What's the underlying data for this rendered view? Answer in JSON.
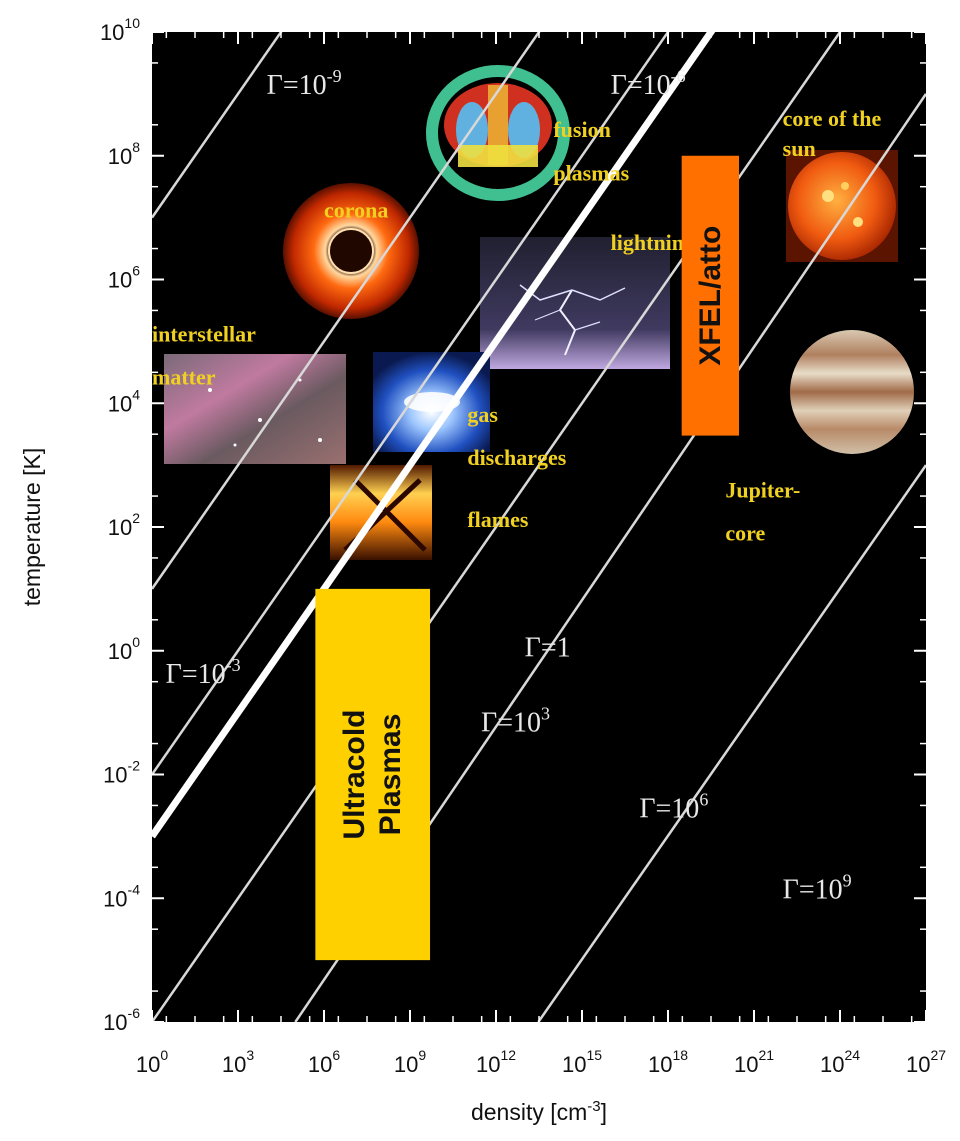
{
  "chart_data": {
    "type": "line",
    "title": "",
    "xlabel": "density [cm",
    "xlabel_sup": "-3",
    "xlabel_close": "]",
    "ylabel": "temperature [K]",
    "x_scale": "log",
    "y_scale": "log",
    "xlim": [
      1,
      1e+27
    ],
    "ylim": [
      1e-06,
      10000000000.0
    ],
    "x_ticks": [
      {
        "base": "10",
        "exp": "0",
        "value": 1
      },
      {
        "base": "10",
        "exp": "3",
        "value": 1000.0
      },
      {
        "base": "10",
        "exp": "6",
        "value": 1000000.0
      },
      {
        "base": "10",
        "exp": "9",
        "value": 1000000000.0
      },
      {
        "base": "10",
        "exp": "12",
        "value": 1000000000000.0
      },
      {
        "base": "10",
        "exp": "15",
        "value": 1000000000000000.0
      },
      {
        "base": "10",
        "exp": "18",
        "value": 1e+18
      },
      {
        "base": "10",
        "exp": "21",
        "value": 1e+21
      },
      {
        "base": "10",
        "exp": "24",
        "value": 1e+24
      },
      {
        "base": "10",
        "exp": "27",
        "value": 1e+27
      }
    ],
    "y_ticks": [
      {
        "base": "10",
        "exp": "-6",
        "value": 1e-06
      },
      {
        "base": "10",
        "exp": "-4",
        "value": 0.0001
      },
      {
        "base": "10",
        "exp": "-2",
        "value": 0.01
      },
      {
        "base": "10",
        "exp": "0",
        "value": 1
      },
      {
        "base": "10",
        "exp": "2",
        "value": 100.0
      },
      {
        "base": "10",
        "exp": "4",
        "value": 10000.0
      },
      {
        "base": "10",
        "exp": "6",
        "value": 1000000.0
      },
      {
        "base": "10",
        "exp": "8",
        "value": 100000000.0
      },
      {
        "base": "10",
        "exp": "10",
        "value": 10000000000.0
      }
    ],
    "grid": false,
    "background": "#000000",
    "series": [
      {
        "label_base": "Γ=10",
        "label_exp": "-9",
        "emphasis": false,
        "x": [
          1,
          1e+27
        ],
        "y": [
          10000000.0,
          1e+25
        ],
        "label_at": [
          10000.0,
          1000000000.0
        ]
      },
      {
        "label_base": "Γ=10",
        "label_exp": "-6",
        "emphasis": false,
        "x": [
          1,
          1e+27
        ],
        "y": [
          10.0,
          1e+19
        ],
        "label_at": [
          1e+16,
          1000000000.0
        ]
      },
      {
        "label_base": "Γ=10",
        "label_exp": "-3",
        "emphasis": false,
        "x": [
          1,
          1e+27
        ],
        "y": [
          0.01,
          1e+16
        ],
        "label_at": [
          3,
          0.3
        ]
      },
      {
        "label_base": "Γ=1",
        "label_exp": "",
        "emphasis": true,
        "x": [
          1,
          1e+27
        ],
        "y": [
          0.001,
          1000000000000000.0
        ],
        "label_at": [
          10000000000000.0,
          0.8
        ]
      },
      {
        "label_base": "Γ=10",
        "label_exp": "3",
        "emphasis": false,
        "x": [
          1,
          1e+27
        ],
        "y": [
          1e-06,
          1000000000000.0
        ],
        "label_at": [
          300000000000.0,
          0.05
        ]
      },
      {
        "label_base": "Γ=10",
        "label_exp": "6",
        "emphasis": false,
        "x": [
          100000.0,
          1e+27
        ],
        "y": [
          1e-06,
          1000000000.0
        ],
        "label_at": [
          1e+17,
          0.002
        ]
      },
      {
        "label_base": "Γ=10",
        "label_exp": "9",
        "emphasis": false,
        "x": [
          30000000000000.0,
          1e+27
        ],
        "y": [
          1e-06,
          1000.0
        ],
        "label_at": [
          1e+22,
          0.0001
        ]
      }
    ],
    "annotations": [
      {
        "text": "corona",
        "x": 1000000.0,
        "y": 10000000.0
      },
      {
        "text": "fusion",
        "x": 100000000000000.0,
        "y": 200000000.0
      },
      {
        "text": "plasmas",
        "x": 100000000000000.0,
        "y": 40000000.0
      },
      {
        "text": "core of the",
        "x": 1e+22,
        "y": 300000000.0
      },
      {
        "text": "sun",
        "x": 1e+22,
        "y": 100000000.0
      },
      {
        "text": "lightning",
        "x": 1e+16,
        "y": 3000000.0
      },
      {
        "text": "interstellar",
        "x": 1,
        "y": 100000.0
      },
      {
        "text": "matter",
        "x": 1,
        "y": 20000.0
      },
      {
        "text": "gas",
        "x": 100000000000.0,
        "y": 5000.0
      },
      {
        "text": "discharges",
        "x": 100000000000.0,
        "y": 1000.0
      },
      {
        "text": "flames",
        "x": 100000000000.0,
        "y": 100.0
      },
      {
        "text": "Jupiter-",
        "x": 1e+20,
        "y": 300.0
      },
      {
        "text": "core",
        "x": 1e+20,
        "y": 60
      }
    ],
    "highlight_boxes": [
      {
        "lines": [
          "Ultracold",
          "Plasmas"
        ],
        "color": "#ffd000",
        "x_range": [
          500000.0,
          5000000000.0
        ],
        "y_range": [
          1e-05,
          10
        ]
      },
      {
        "lines": [
          "XFEL/atto"
        ],
        "color": "#ff7000",
        "x_range": [
          3e+18,
          3e+20
        ],
        "y_range": [
          3000.0,
          100000000.0
        ]
      }
    ],
    "legend": "none"
  }
}
